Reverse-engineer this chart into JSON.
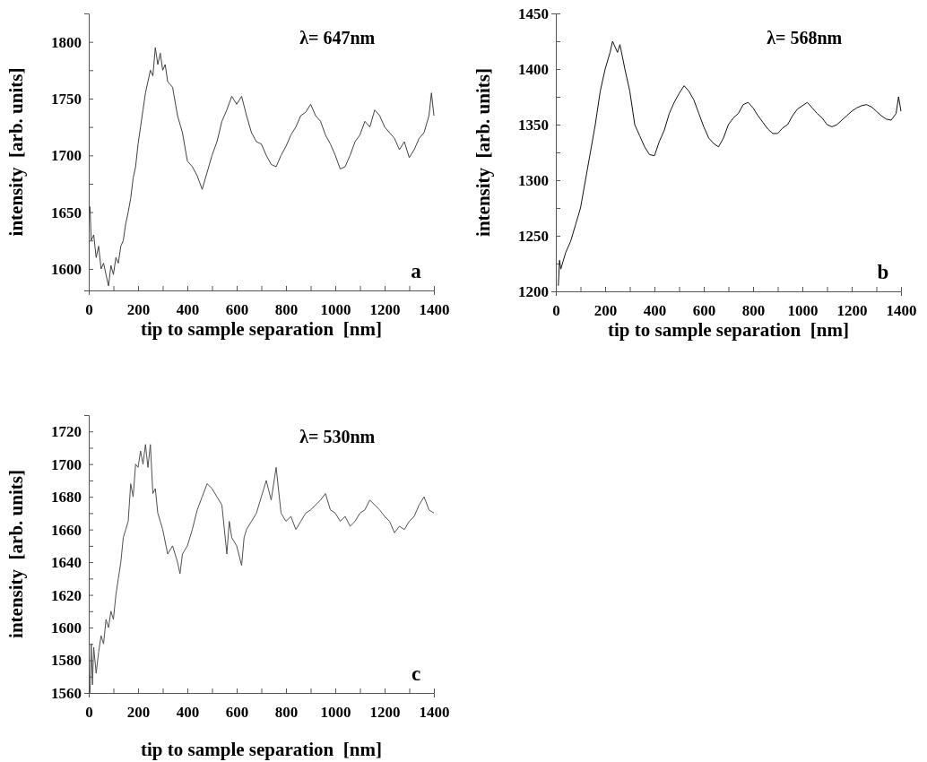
{
  "chart_data": [
    {
      "type": "line",
      "xlabel": "tip to sample separation  [nm]",
      "ylabel": "intensity  [arb. units]",
      "annotations": [
        "λ= 647nm",
        "a"
      ],
      "xlim": [
        0,
        1400
      ],
      "ylim": [
        1581,
        1825
      ],
      "xticks": [
        0,
        {
          "value": 100,
          "label": null
        },
        200,
        {
          "value": 300,
          "label": null
        },
        400,
        {
          "value": 500,
          "label": null
        },
        600,
        {
          "value": 700,
          "label": null
        },
        800,
        {
          "value": 900,
          "label": null
        },
        1000,
        {
          "value": 1100,
          "label": null
        },
        1200,
        {
          "value": 1300,
          "label": null
        },
        1400
      ],
      "yticks": [
        1600,
        {
          "value": 1625,
          "label": null
        },
        1650,
        {
          "value": 1675,
          "label": null
        },
        1700,
        {
          "value": 1725,
          "label": null
        },
        1750,
        {
          "value": 1775,
          "label": null
        },
        1800
      ],
      "grid": false,
      "marker": "none",
      "line_style": "solid",
      "series": [
        {
          "color": "#404040",
          "x": [
            5,
            10,
            20,
            30,
            40,
            50,
            60,
            70,
            80,
            90,
            100,
            110,
            120,
            130,
            140,
            150,
            160,
            170,
            180,
            190,
            200,
            210,
            220,
            230,
            240,
            250,
            260,
            270,
            280,
            290,
            300,
            310,
            320,
            340,
            360,
            380,
            400,
            420,
            440,
            460,
            480,
            500,
            520,
            540,
            560,
            580,
            600,
            620,
            640,
            660,
            680,
            700,
            720,
            740,
            760,
            780,
            800,
            820,
            840,
            860,
            880,
            900,
            920,
            940,
            960,
            980,
            1000,
            1020,
            1040,
            1060,
            1080,
            1100,
            1120,
            1140,
            1160,
            1180,
            1200,
            1220,
            1240,
            1260,
            1280,
            1300,
            1320,
            1340,
            1360,
            1380,
            1390,
            1400
          ],
          "values": [
            1655,
            1625,
            1630,
            1610,
            1620,
            1600,
            1605,
            1595,
            1585,
            1603,
            1595,
            1610,
            1605,
            1620,
            1625,
            1640,
            1650,
            1662,
            1680,
            1690,
            1710,
            1725,
            1740,
            1755,
            1765,
            1775,
            1770,
            1795,
            1780,
            1790,
            1775,
            1780,
            1765,
            1760,
            1735,
            1720,
            1695,
            1690,
            1682,
            1670,
            1685,
            1700,
            1712,
            1730,
            1740,
            1752,
            1745,
            1752,
            1735,
            1720,
            1712,
            1710,
            1700,
            1692,
            1690,
            1700,
            1708,
            1718,
            1725,
            1735,
            1738,
            1745,
            1735,
            1730,
            1718,
            1710,
            1700,
            1688,
            1690,
            1700,
            1712,
            1718,
            1730,
            1725,
            1740,
            1735,
            1725,
            1720,
            1715,
            1705,
            1712,
            1698,
            1705,
            1715,
            1720,
            1735,
            1755,
            1735
          ]
        }
      ]
    },
    {
      "type": "line",
      "xlabel": "tip to sample separation  [nm]",
      "ylabel": "intensity  [arb. units]",
      "annotations": [
        "λ= 568nm",
        "b"
      ],
      "xlim": [
        0,
        1400
      ],
      "ylim": [
        1200,
        1450
      ],
      "xticks": [
        0,
        {
          "value": 100,
          "label": null
        },
        200,
        {
          "value": 300,
          "label": null
        },
        400,
        {
          "value": 500,
          "label": null
        },
        600,
        {
          "value": 700,
          "label": null
        },
        800,
        {
          "value": 900,
          "label": null
        },
        1000,
        {
          "value": 1100,
          "label": null
        },
        1200,
        {
          "value": 1300,
          "label": null
        },
        1400
      ],
      "yticks": [
        1200,
        {
          "value": 1225,
          "label": null
        },
        1250,
        {
          "value": 1275,
          "label": null
        },
        1300,
        {
          "value": 1325,
          "label": null
        },
        1350,
        {
          "value": 1375,
          "label": null
        },
        1400,
        {
          "value": 1425,
          "label": null
        },
        1450
      ],
      "grid": false,
      "marker": "none",
      "line_style": "solid",
      "series": [
        {
          "color": "#111111",
          "x": [
            10,
            15,
            20,
            40,
            60,
            80,
            100,
            120,
            140,
            160,
            180,
            200,
            220,
            230,
            250,
            260,
            280,
            300,
            320,
            340,
            360,
            380,
            400,
            420,
            440,
            460,
            480,
            500,
            520,
            540,
            560,
            580,
            600,
            620,
            640,
            660,
            680,
            700,
            720,
            740,
            760,
            780,
            800,
            820,
            840,
            860,
            880,
            900,
            920,
            940,
            960,
            980,
            1000,
            1020,
            1040,
            1060,
            1080,
            1100,
            1120,
            1140,
            1160,
            1180,
            1200,
            1220,
            1240,
            1260,
            1280,
            1300,
            1320,
            1340,
            1360,
            1380,
            1390,
            1400
          ],
          "values": [
            1205,
            1228,
            1220,
            1235,
            1245,
            1260,
            1275,
            1300,
            1325,
            1350,
            1380,
            1400,
            1415,
            1425,
            1415,
            1422,
            1400,
            1380,
            1350,
            1340,
            1330,
            1323,
            1322,
            1335,
            1345,
            1360,
            1370,
            1378,
            1385,
            1380,
            1372,
            1360,
            1348,
            1338,
            1333,
            1330,
            1338,
            1350,
            1356,
            1360,
            1368,
            1370,
            1365,
            1358,
            1352,
            1346,
            1342,
            1342,
            1347,
            1350,
            1358,
            1364,
            1367,
            1370,
            1365,
            1360,
            1356,
            1350,
            1348,
            1350,
            1354,
            1358,
            1362,
            1365,
            1367,
            1368,
            1366,
            1362,
            1358,
            1355,
            1354,
            1360,
            1375,
            1362
          ]
        }
      ]
    },
    {
      "type": "line",
      "xlabel": "tip to sample separation  [nm]",
      "ylabel": "intensity  [arb. units]",
      "annotations": [
        "λ= 530nm",
        "c"
      ],
      "xlim": [
        0,
        1400
      ],
      "ylim": [
        1560,
        1730
      ],
      "xticks": [
        0,
        {
          "value": 100,
          "label": null
        },
        200,
        {
          "value": 300,
          "label": null
        },
        400,
        {
          "value": 500,
          "label": null
        },
        600,
        {
          "value": 700,
          "label": null
        },
        800,
        {
          "value": 900,
          "label": null
        },
        1000,
        {
          "value": 1100,
          "label": null
        },
        1200,
        {
          "value": 1300,
          "label": null
        },
        1400
      ],
      "yticks": [
        1560,
        {
          "value": 1570,
          "label": null
        },
        1580,
        {
          "value": 1590,
          "label": null
        },
        1600,
        {
          "value": 1610,
          "label": null
        },
        1620,
        {
          "value": 1630,
          "label": null
        },
        1640,
        {
          "value": 1650,
          "label": null
        },
        1660,
        {
          "value": 1670,
          "label": null
        },
        1680,
        {
          "value": 1690,
          "label": null
        },
        1700,
        {
          "value": 1710,
          "label": null
        },
        1720
      ],
      "grid": false,
      "marker": "none",
      "line_style": "solid",
      "series": [
        {
          "color": "#505050",
          "x": [
            5,
            10,
            15,
            20,
            30,
            40,
            50,
            60,
            70,
            80,
            90,
            100,
            110,
            120,
            130,
            140,
            150,
            160,
            170,
            180,
            190,
            200,
            210,
            220,
            230,
            240,
            250,
            260,
            270,
            280,
            300,
            320,
            340,
            360,
            370,
            380,
            400,
            420,
            440,
            460,
            480,
            500,
            520,
            540,
            560,
            570,
            580,
            600,
            620,
            630,
            640,
            660,
            680,
            700,
            720,
            740,
            760,
            780,
            800,
            820,
            840,
            860,
            880,
            900,
            920,
            940,
            960,
            980,
            1000,
            1020,
            1040,
            1060,
            1080,
            1100,
            1120,
            1140,
            1160,
            1180,
            1200,
            1220,
            1240,
            1260,
            1280,
            1300,
            1320,
            1340,
            1360,
            1380,
            1400
          ],
          "values": [
            1560,
            1590,
            1565,
            1588,
            1572,
            1585,
            1595,
            1590,
            1605,
            1600,
            1610,
            1605,
            1620,
            1630,
            1640,
            1655,
            1660,
            1665,
            1688,
            1680,
            1700,
            1698,
            1708,
            1700,
            1712,
            1698,
            1712,
            1682,
            1685,
            1670,
            1660,
            1645,
            1650,
            1640,
            1633,
            1645,
            1650,
            1660,
            1672,
            1680,
            1688,
            1685,
            1680,
            1675,
            1645,
            1665,
            1655,
            1650,
            1638,
            1655,
            1660,
            1665,
            1670,
            1680,
            1690,
            1678,
            1698,
            1670,
            1665,
            1668,
            1660,
            1665,
            1670,
            1672,
            1675,
            1678,
            1682,
            1672,
            1670,
            1665,
            1668,
            1662,
            1665,
            1670,
            1672,
            1678,
            1675,
            1672,
            1668,
            1665,
            1658,
            1662,
            1660,
            1665,
            1668,
            1675,
            1680,
            1672,
            1670
          ]
        }
      ]
    }
  ]
}
